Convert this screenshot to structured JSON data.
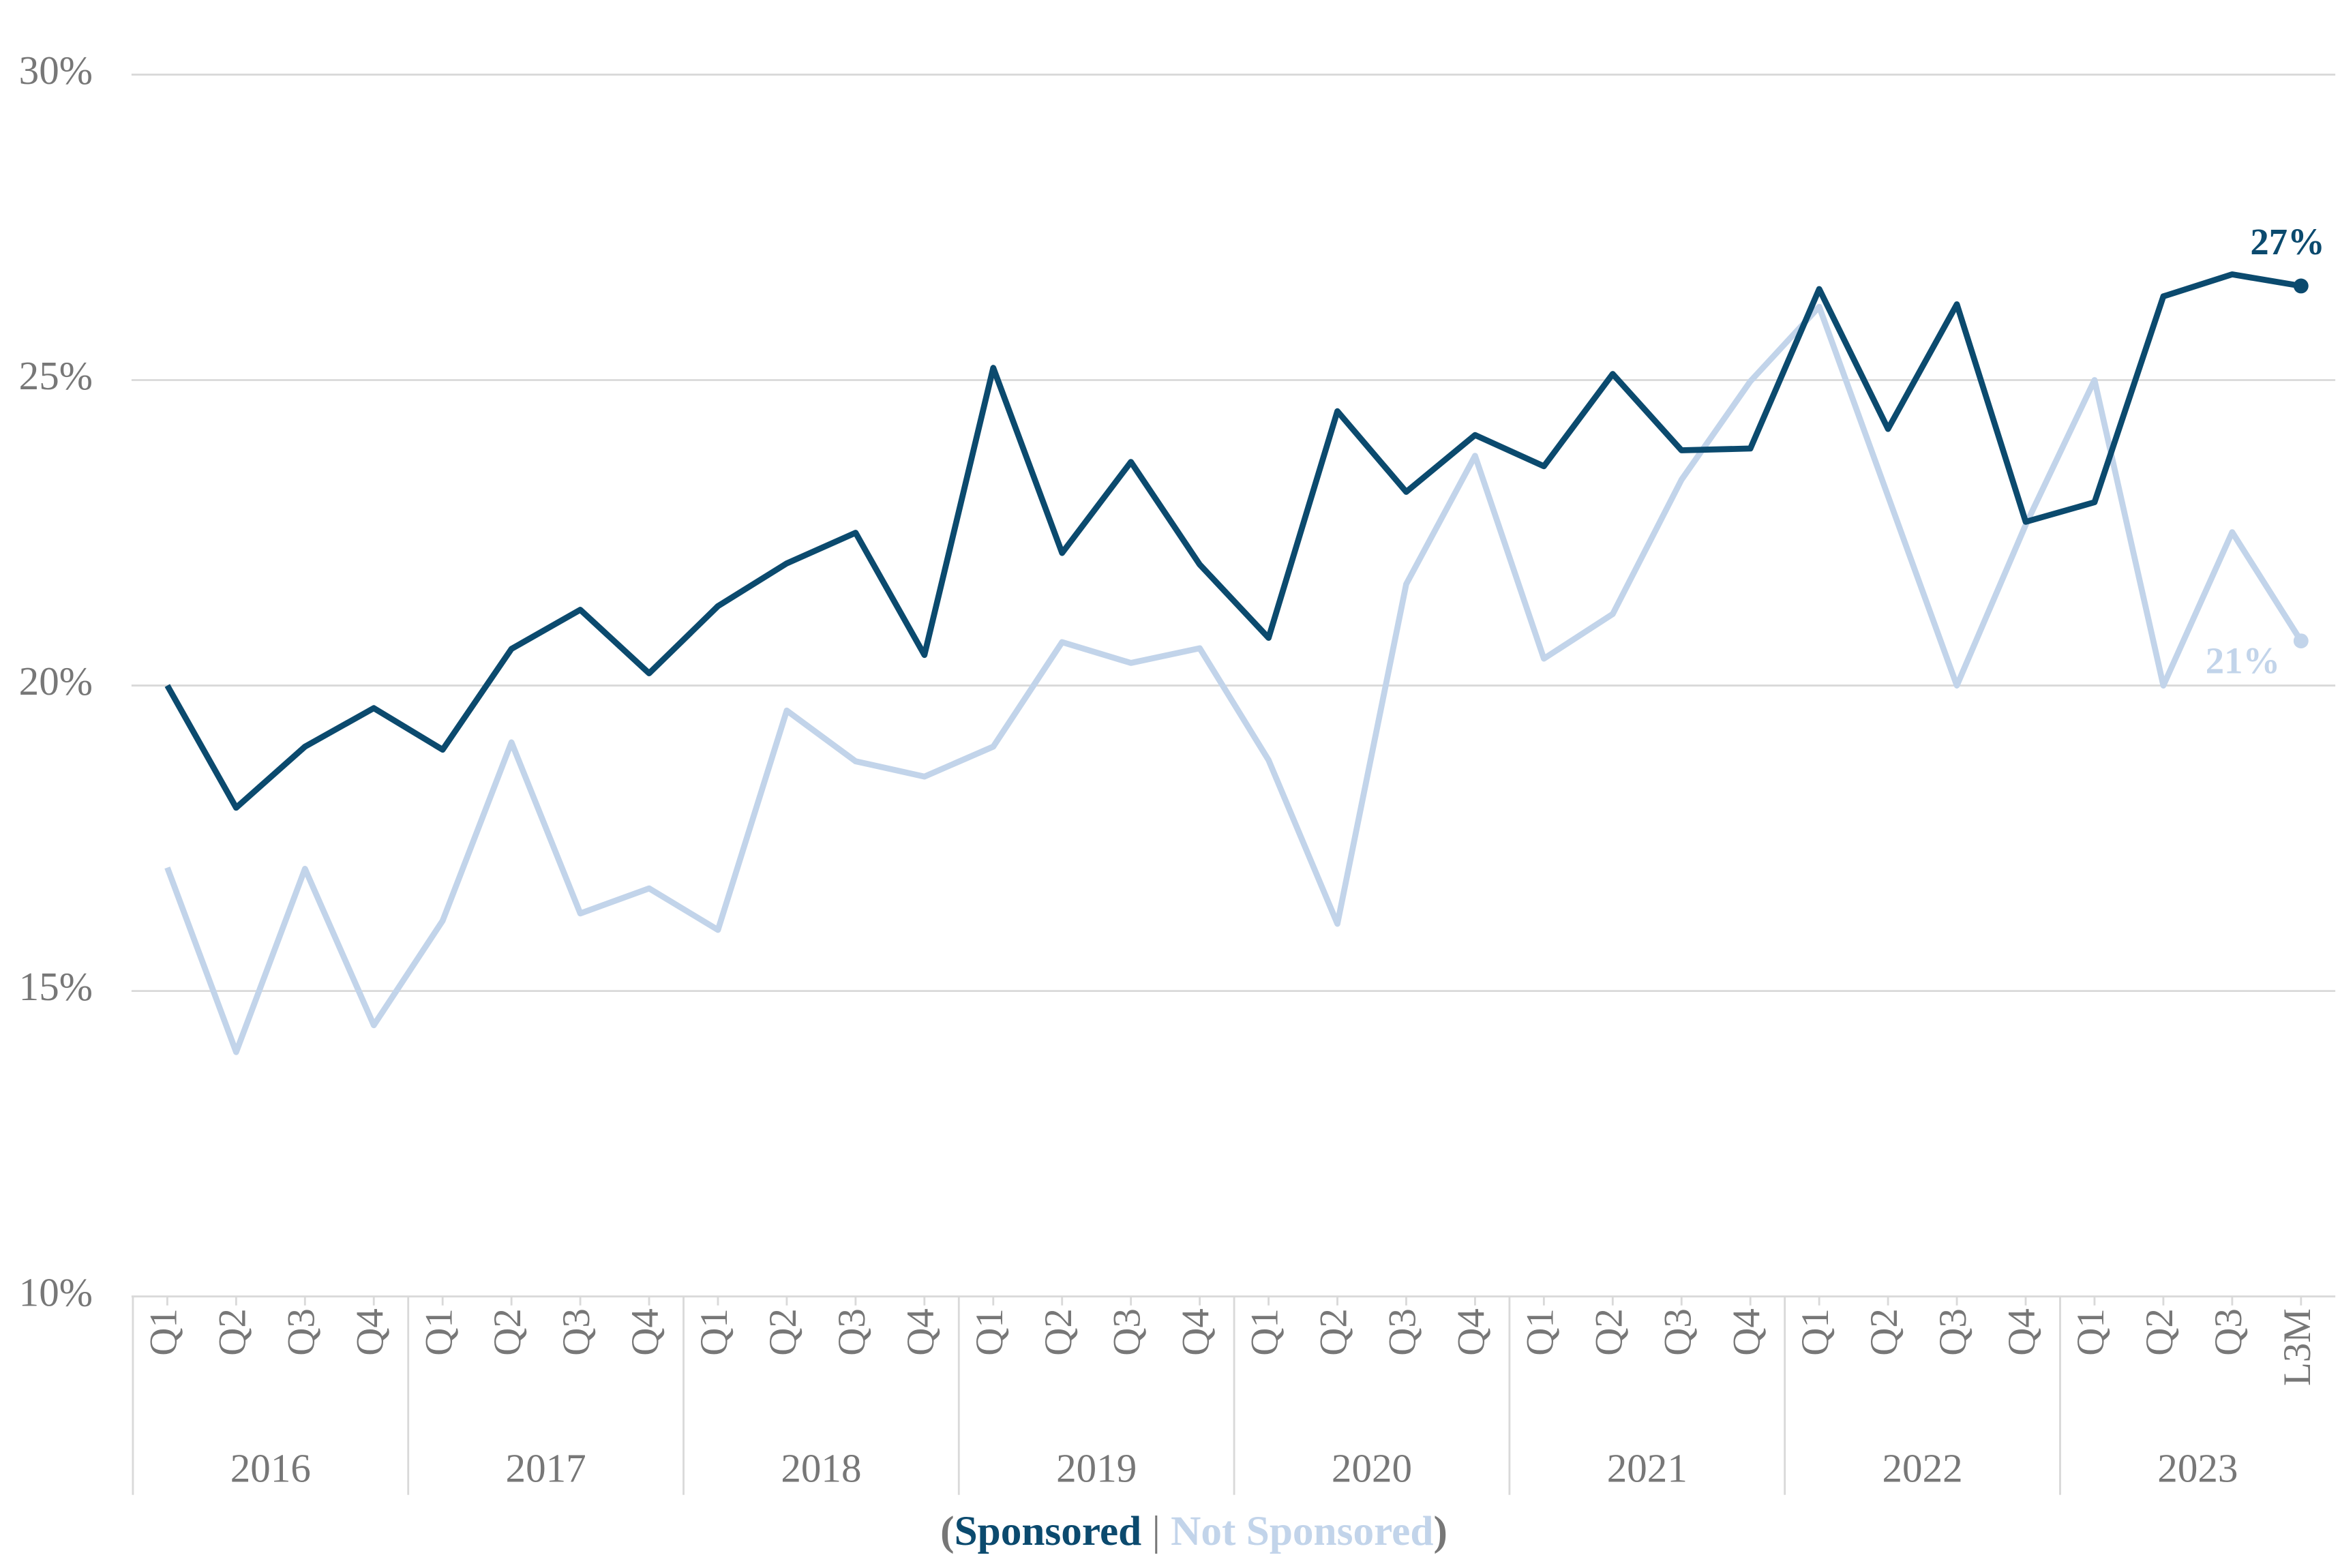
{
  "chart_data": {
    "type": "line",
    "categories": [
      "Q1",
      "Q2",
      "Q3",
      "Q4",
      "Q1",
      "Q2",
      "Q3",
      "Q4",
      "Q1",
      "Q2",
      "Q3",
      "Q4",
      "Q1",
      "Q2",
      "Q3",
      "Q4",
      "Q1",
      "Q2",
      "Q3",
      "Q4",
      "Q1",
      "Q2",
      "Q3",
      "Q4",
      "Q1",
      "Q2",
      "Q3",
      "Q4",
      "Q1",
      "Q2",
      "Q3",
      "L3M"
    ],
    "x_groups": [
      "2016",
      "2017",
      "2018",
      "2019",
      "2020",
      "2021",
      "2022",
      "2023"
    ],
    "series": [
      {
        "name": "Sponsored",
        "color": "#0b4a6e",
        "values": [
          20.0,
          18.0,
          19.0,
          19.63,
          18.95,
          20.6,
          21.24,
          20.2,
          21.3,
          22.0,
          22.5,
          20.5,
          25.2,
          22.17,
          23.66,
          21.98,
          20.78,
          24.49,
          23.17,
          24.1,
          23.59,
          25.1,
          23.85,
          23.88,
          26.49,
          24.2,
          26.24,
          22.68,
          23.0,
          26.37,
          26.73,
          26.54
        ],
        "value_labels": [
          null,
          null,
          null,
          null,
          null,
          null,
          null,
          null,
          null,
          null,
          null,
          null,
          null,
          null,
          null,
          null,
          null,
          null,
          null,
          null,
          null,
          null,
          null,
          null,
          null,
          null,
          null,
          null,
          null,
          null,
          null,
          "27%"
        ]
      },
      {
        "name": "Not Sponsored",
        "color": "#c2d4ea",
        "values": [
          17.02,
          14.0,
          17.0,
          14.44,
          16.15,
          19.07,
          16.27,
          16.68,
          16.0,
          19.59,
          18.76,
          18.51,
          19.0,
          20.71,
          20.37,
          20.61,
          18.78,
          16.1,
          21.66,
          23.76,
          20.44,
          21.17,
          23.37,
          24.98,
          26.2,
          23.1,
          20.0,
          22.63,
          25.0,
          20.0,
          22.51,
          20.73
        ],
        "value_labels": [
          null,
          null,
          null,
          null,
          null,
          null,
          null,
          null,
          null,
          null,
          null,
          null,
          null,
          null,
          null,
          null,
          null,
          null,
          null,
          null,
          null,
          null,
          null,
          null,
          null,
          null,
          null,
          null,
          null,
          null,
          null,
          "21%"
        ]
      }
    ],
    "ylim": [
      10,
      30
    ],
    "yticks": [
      {
        "value": 10,
        "label": "10%"
      },
      {
        "value": 15,
        "label": "15%"
      },
      {
        "value": 20,
        "label": "20%"
      },
      {
        "value": 25,
        "label": "25%"
      },
      {
        "value": 30,
        "label": "30%"
      }
    ],
    "grid": true,
    "legend_prefix": "(",
    "legend_separator": " | ",
    "legend_suffix": ")"
  }
}
